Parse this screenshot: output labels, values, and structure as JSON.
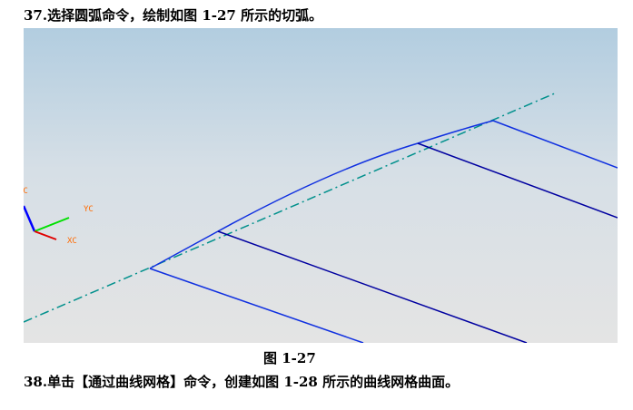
{
  "heading": "37.选择圆弧命令，绘制如图 1-27 所示的切弧。",
  "figure": {
    "caption": "图 1-27",
    "axes": {
      "zc": "ZC",
      "yc": "YC",
      "xc": "XC"
    },
    "colors": {
      "curve": "#1030e0",
      "line": "#0000a0",
      "centerline": "#00908c",
      "zc": "#0000ff",
      "yc": "#00e000",
      "xc": "#e00000",
      "label": "#ff6a00"
    }
  },
  "next_step": "38.单击【通过曲线网格】命令，创建如图 1-28 所示的曲线网格曲面。"
}
